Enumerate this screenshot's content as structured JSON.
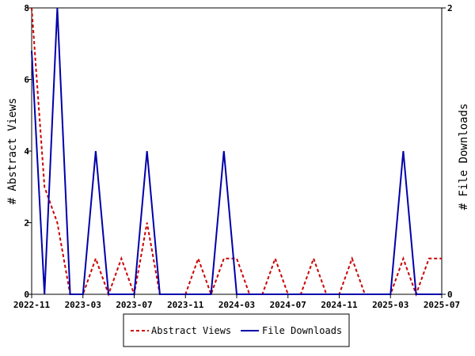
{
  "chart_data": {
    "type": "line",
    "x": [
      "2022-11",
      "2022-12",
      "2023-01",
      "2023-02",
      "2023-03",
      "2023-04",
      "2023-05",
      "2023-06",
      "2023-07",
      "2023-08",
      "2023-09",
      "2023-10",
      "2023-11",
      "2023-12",
      "2024-01",
      "2024-02",
      "2024-03",
      "2024-04",
      "2024-05",
      "2024-06",
      "2024-07",
      "2024-08",
      "2024-09",
      "2024-10",
      "2024-11",
      "2024-12",
      "2025-01",
      "2025-02",
      "2025-03",
      "2025-04",
      "2025-05",
      "2025-06",
      "2025-07"
    ],
    "x_ticks": [
      "2022-11",
      "2023-03",
      "2023-07",
      "2023-11",
      "2024-03",
      "2024-07",
      "2024-11",
      "2025-03",
      "2025-07"
    ],
    "series": [
      {
        "name": "Abstract Views",
        "axis": "left",
        "color": "#cc0000",
        "dash": true,
        "values": [
          8,
          3,
          2,
          0,
          0,
          1,
          0,
          1,
          0,
          2,
          0,
          0,
          0,
          1,
          0,
          1,
          1,
          0,
          0,
          1,
          0,
          0,
          1,
          0,
          0,
          1,
          0,
          0,
          0,
          1,
          0,
          1,
          1
        ]
      },
      {
        "name": "File Downloads",
        "axis": "right",
        "color": "#0000aa",
        "dash": false,
        "values": [
          1.7,
          0,
          2,
          0,
          0,
          1,
          0,
          0,
          0,
          1,
          0,
          0,
          0,
          0,
          0,
          1,
          0,
          0,
          0,
          0,
          0,
          0,
          0,
          0,
          0,
          0,
          0,
          0,
          0,
          1,
          0,
          0,
          0
        ]
      }
    ],
    "ylabel_left": "# Abstract Views",
    "ylabel_right": "# File Downloads",
    "ylim_left": [
      0,
      8
    ],
    "ylim_right": [
      0,
      2
    ],
    "yticks_left": [
      "0",
      "2",
      "4",
      "6",
      "8"
    ],
    "yticks_right": [
      "0",
      "2"
    ],
    "legend_placement": "bottom-center"
  }
}
